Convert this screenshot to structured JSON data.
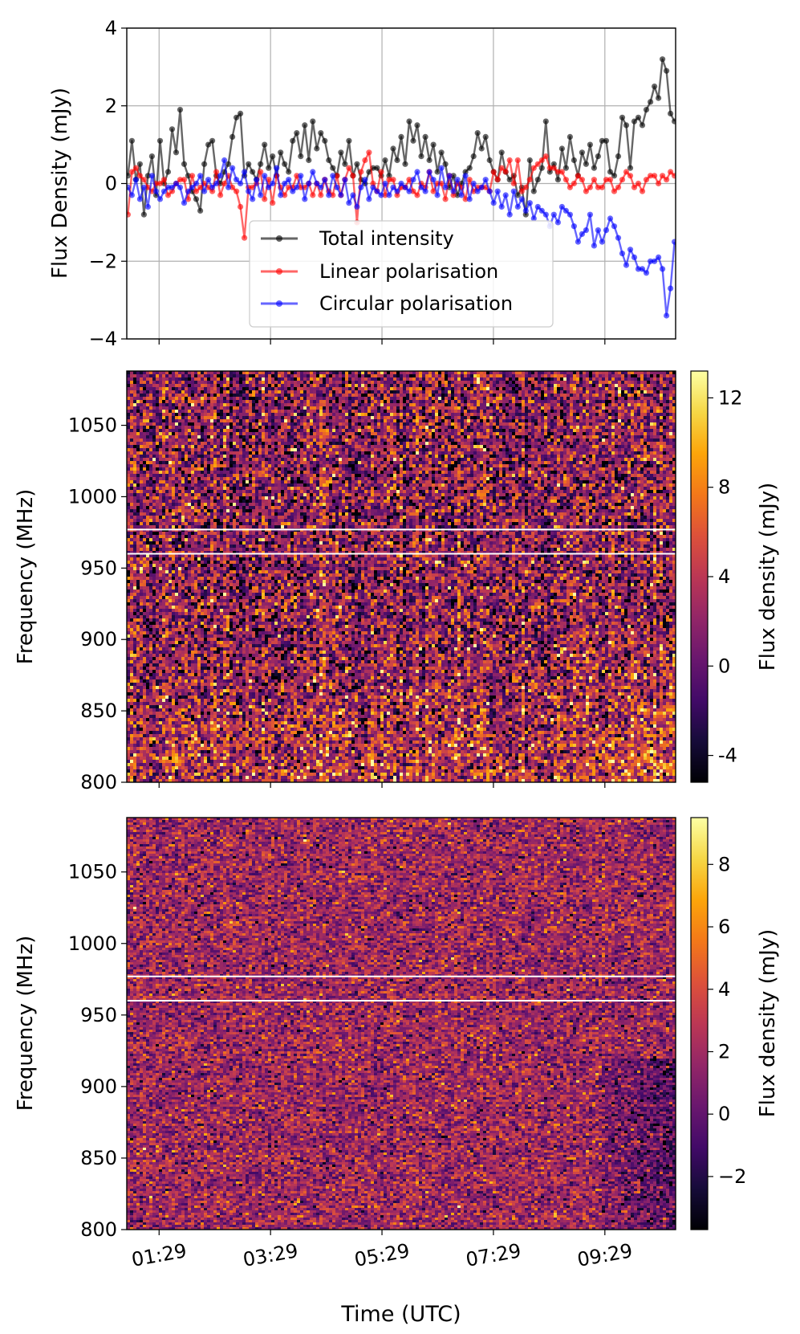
{
  "chart_data": [
    {
      "type": "line",
      "title": "",
      "xlabel": "",
      "ylabel": "Flux Density (mJy)",
      "xlim": [
        0.9,
        10.75
      ],
      "ylim": [
        -4,
        4
      ],
      "yticks": [
        4,
        2,
        0,
        -2,
        -4
      ],
      "ytick_labels": [
        "4",
        "2",
        "0",
        "−2",
        "−4"
      ],
      "xticks": [
        1.48,
        3.48,
        5.48,
        7.48,
        9.48
      ],
      "grid": true,
      "legend_position": "lower-center",
      "series": [
        {
          "name": "Total intensity",
          "color": "#000000",
          "values": [
            0.2,
            1.1,
            0.1,
            0.5,
            -0.8,
            0.2,
            0.7,
            -0.3,
            1.1,
            0.0,
            0.3,
            1.4,
            0.8,
            1.9,
            0.5,
            0.2,
            -0.2,
            -0.4,
            -0.7,
            0.5,
            1.0,
            1.1,
            0.2,
            0.0,
            0.3,
            0.5,
            1.2,
            1.7,
            1.8,
            0.2,
            0.5,
            0.3,
            0.1,
            0.5,
            1.0,
            0.4,
            0.7,
            0.2,
            0.8,
            0.5,
            0.3,
            1.1,
            1.3,
            0.7,
            1.5,
            0.6,
            1.6,
            0.9,
            1.3,
            1.1,
            0.6,
            0.4,
            0.2,
            0.8,
            0.5,
            1.1,
            0.2,
            0.5,
            0.1,
            0.0,
            0.3,
            0.4,
            0.4,
            0.2,
            0.6,
            0.2,
            0.9,
            0.6,
            1.2,
            0.5,
            1.6,
            1.1,
            1.5,
            0.7,
            1.2,
            0.6,
            1.0,
            0.3,
            0.8,
            0.5,
            -0.1,
            0.2,
            -0.3,
            0.0,
            0.3,
            0.4,
            0.7,
            1.3,
            0.9,
            1.2,
            0.6,
            0.3,
            0.1,
            0.8,
            0.3,
            0.1,
            0.2,
            -0.3,
            -0.1,
            -0.8,
            0.6,
            -0.2,
            0.1,
            0.4,
            1.6,
            0.3,
            0.5,
            0.1,
            0.9,
            0.4,
            1.2,
            0.6,
            0.2,
            0.8,
            0.5,
            1.0,
            0.4,
            0.7,
            1.1,
            1.1,
            0.3,
            0.2,
            0.7,
            1.7,
            1.5,
            0.4,
            1.6,
            1.7,
            1.5,
            1.9,
            2.1,
            2.5,
            2.2,
            3.2,
            2.9,
            1.8,
            1.6
          ]
        },
        {
          "name": "Linear polarisation",
          "color": "#ff0000",
          "values": [
            -0.8,
            0.3,
            0.4,
            0.2,
            0.1,
            -0.1,
            -0.2,
            0.0,
            0.0,
            0.1,
            -0.3,
            -0.2,
            0.0,
            0.1,
            0.1,
            -0.4,
            0.2,
            -0.2,
            -0.1,
            0.0,
            -0.1,
            -0.2,
            0.3,
            -0.3,
            0.0,
            0.2,
            -0.1,
            -0.2,
            -0.6,
            -1.4,
            -0.1,
            -0.1,
            0.0,
            0.3,
            -0.4,
            0.1,
            -0.5,
            0.2,
            -0.1,
            -0.3,
            -0.1,
            -0.1,
            0.2,
            -0.1,
            -0.1,
            0.0,
            -0.3,
            0.0,
            -0.3,
            0.1,
            -0.2,
            -0.3,
            0.2,
            -0.3,
            0.1,
            0.4,
            0.2,
            -1.0,
            0.3,
            0.6,
            0.8,
            0.0,
            -0.2,
            0.3,
            -0.3,
            0.1,
            0.1,
            -0.3,
            -0.1,
            -0.1,
            0.1,
            -0.2,
            -0.3,
            0.0,
            -0.1,
            0.3,
            -0.2,
            0.0,
            0.0,
            -0.4,
            0.2,
            -0.3,
            0.0,
            -0.1,
            -0.4,
            0.1,
            -0.2,
            -0.1,
            -0.1,
            -0.1,
            -0.2,
            0.3,
            0.1,
            0.4,
            0.3,
            0.6,
            0.0,
            0.6,
            -0.2,
            -0.1,
            0.1,
            0.4,
            0.5,
            0.6,
            0.7,
            0.4,
            0.4,
            0.3,
            0.3,
            0.1,
            -0.1,
            0.0,
            0.2,
            0.1,
            -0.2,
            -0.1,
            0.1,
            -0.1,
            -0.1,
            0.1,
            0.1,
            -0.2,
            -0.1,
            0.1,
            0.3,
            0.2,
            -0.1,
            0.0,
            -0.2,
            0.1,
            0.2,
            0.2,
            0.0,
            0.2,
            0.1,
            0.3,
            0.2
          ]
        },
        {
          "name": "Circular polarisation",
          "color": "#0000ff",
          "values": [
            -0.1,
            -0.3,
            0.1,
            -0.4,
            -0.1,
            -0.6,
            0.2,
            -0.2,
            -0.4,
            -0.2,
            -0.1,
            -0.1,
            0.0,
            -0.1,
            -0.5,
            -0.2,
            -0.1,
            0.0,
            0.2,
            -0.2,
            0.1,
            -0.1,
            0.0,
            0.2,
            0.6,
            -0.1,
            0.4,
            0.1,
            0.0,
            0.3,
            -0.2,
            -0.4,
            0.1,
            -0.3,
            0.2,
            -0.1,
            0.0,
            0.4,
            -0.3,
            0.0,
            0.1,
            -0.2,
            -0.1,
            0.2,
            -0.4,
            0.0,
            0.3,
            0.0,
            -0.1,
            0.1,
            -0.3,
            0.2,
            -0.1,
            -0.3,
            0.1,
            -0.5,
            -0.3,
            -0.6,
            -0.1,
            0.1,
            -0.4,
            -0.1,
            -0.2,
            -0.3,
            0.0,
            -0.3,
            -0.1,
            -0.2,
            0.0,
            -0.1,
            -0.2,
            0.1,
            0.3,
            -0.1,
            -0.2,
            0.3,
            0.1,
            -0.3,
            0.4,
            -0.1,
            0.2,
            -0.2,
            0.1,
            -0.3,
            0.2,
            -0.4,
            0.0,
            -0.2,
            -0.1,
            0.1,
            -0.2,
            -0.5,
            -0.2,
            -0.6,
            -0.3,
            -0.8,
            -0.2,
            -0.6,
            -0.4,
            -0.7,
            -0.5,
            -0.9,
            -0.6,
            -0.7,
            -0.8,
            -1.1,
            -0.8,
            -1.0,
            -0.6,
            -0.7,
            -0.8,
            -1.1,
            -1.5,
            -1.3,
            -1.2,
            -0.8,
            -1.6,
            -1.2,
            -1.5,
            -1.2,
            -0.9,
            -1.1,
            -1.4,
            -1.8,
            -2.1,
            -1.7,
            -1.9,
            -2.2,
            -2.2,
            -2.3,
            -2.0,
            -2.0,
            -1.9,
            -2.2,
            -3.4,
            -2.7,
            -1.5
          ]
        }
      ]
    },
    {
      "type": "heatmap",
      "title": "",
      "xlabel": "",
      "ylabel": "Frequency (MHz)",
      "yticks": [
        1050,
        1000,
        950,
        900,
        850,
        800
      ],
      "ylim": [
        800,
        1088
      ],
      "xlim": [
        0.9,
        10.75
      ],
      "colormap": "inferno",
      "colorbar_label": "Flux density (mJy)",
      "colorbar_range": [
        -5.2,
        13.2
      ],
      "colorbar_ticks": [
        12,
        8,
        4,
        0,
        -4
      ],
      "colorbar_tick_labels": [
        "12",
        "8",
        "4",
        "0",
        "-4"
      ],
      "flagged_channels_mhz": [
        977,
        960
      ],
      "image_seed": 11
    },
    {
      "type": "heatmap",
      "title": "",
      "xlabel": "Time (UTC)",
      "ylabel": "Frequency (MHz)",
      "yticks": [
        1050,
        1000,
        950,
        900,
        850,
        800
      ],
      "ylim": [
        800,
        1088
      ],
      "xlim": [
        0.9,
        10.75
      ],
      "xticks": [
        1.48,
        3.48,
        5.48,
        7.48,
        9.48
      ],
      "xtick_labels": [
        "01:29",
        "03:29",
        "05:29",
        "07:29",
        "09:29"
      ],
      "colormap": "inferno",
      "colorbar_label": "Flux density (mJy)",
      "colorbar_range": [
        -3.7,
        9.5
      ],
      "colorbar_ticks": [
        8,
        6,
        4,
        2,
        0,
        -2
      ],
      "colorbar_tick_labels": [
        "8",
        "6",
        "4",
        "2",
        "0",
        "−2"
      ],
      "flagged_channels_mhz": [
        977,
        960
      ],
      "image_seed": 29
    }
  ]
}
